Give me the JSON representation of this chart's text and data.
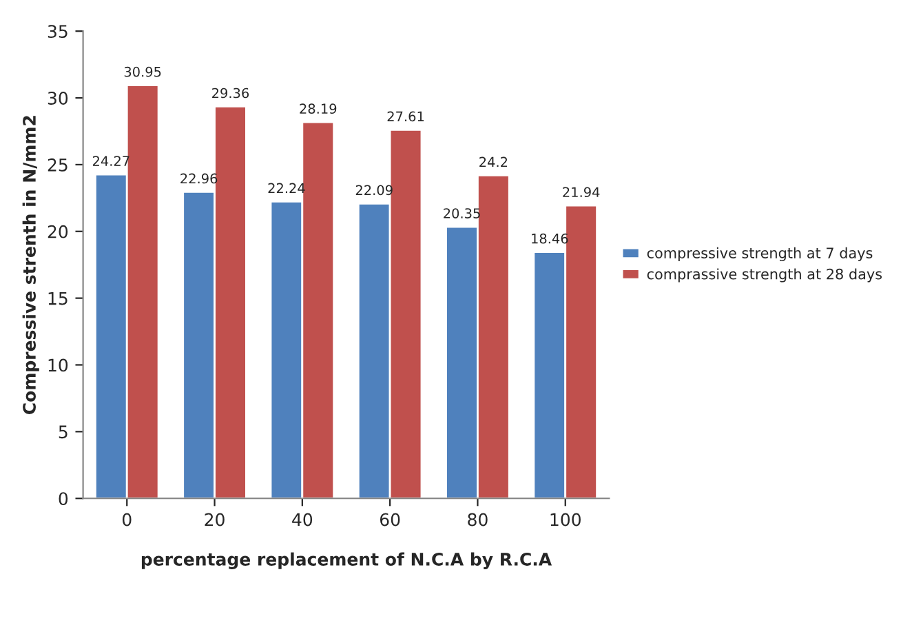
{
  "chart_data": {
    "type": "bar",
    "xlabel": "percentage replacement of N.C.A by R.C.A",
    "ylabel": "Compressive strenth in N/mm2",
    "categories": [
      "0",
      "20",
      "40",
      "60",
      "80",
      "100"
    ],
    "series": [
      {
        "name": "compressive strength at 7 days",
        "color": "#4f81bd",
        "values": [
          24.27,
          22.96,
          22.24,
          22.09,
          20.35,
          18.46
        ]
      },
      {
        "name": "comprassive strength at 28 days",
        "color": "#c0504d",
        "values": [
          30.95,
          29.36,
          28.19,
          27.61,
          24.2,
          21.94
        ]
      }
    ],
    "ylim": [
      0,
      35
    ],
    "yticks": [
      0,
      5,
      10,
      15,
      20,
      25,
      30,
      35
    ],
    "data_labels": true,
    "legend": "right",
    "grid": false
  }
}
